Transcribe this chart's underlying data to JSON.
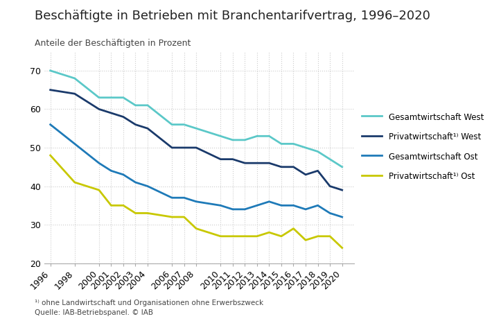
{
  "title": "Beschäftigte in Betrieben mit Branchentarifvertrag, 1996–2020",
  "subtitle": "Anteile der Beschäftigten in Prozent",
  "footnote1": "¹⁾ ohne Landwirtschaft und Organisationen ohne Erwerbszweck",
  "footnote2": "Quelle: IAB-Betriebspanel. © IAB",
  "years": [
    1996,
    1998,
    2000,
    2001,
    2002,
    2003,
    2004,
    2006,
    2007,
    2008,
    2010,
    2011,
    2012,
    2013,
    2014,
    2015,
    2016,
    2017,
    2018,
    2019,
    2020
  ],
  "gesamtwirtschaft_west": [
    70,
    68,
    63,
    63,
    63,
    61,
    61,
    56,
    56,
    55,
    53,
    52,
    52,
    53,
    53,
    51,
    51,
    50,
    49,
    47,
    45
  ],
  "privatwirtschaft_west": [
    65,
    64,
    60,
    59,
    58,
    56,
    55,
    50,
    50,
    50,
    47,
    47,
    46,
    46,
    46,
    45,
    45,
    43,
    44,
    40,
    39
  ],
  "gesamtwirtschaft_ost": [
    56,
    51,
    46,
    44,
    43,
    41,
    40,
    37,
    37,
    36,
    35,
    34,
    34,
    35,
    36,
    35,
    35,
    34,
    35,
    33,
    32
  ],
  "privatwirtschaft_ost": [
    48,
    41,
    39,
    35,
    35,
    33,
    33,
    32,
    32,
    29,
    27,
    27,
    27,
    27,
    28,
    27,
    29,
    26,
    27,
    27,
    24
  ],
  "color_gesamtwirtschaft_west": "#5BC8C8",
  "color_privatwirtschaft_west": "#1A3A6B",
  "color_gesamtwirtschaft_ost": "#1E7AB8",
  "color_privatwirtschaft_ost": "#C8C800",
  "ylim": [
    20,
    75
  ],
  "yticks": [
    20,
    30,
    40,
    50,
    60,
    70
  ],
  "legend_labels": [
    "Gesamtwirtschaft West",
    "Privatwirtschaft¹⁾ West",
    "Gesamtwirtschaft Ost",
    "Privatwirtschaft¹⁾ Ost"
  ],
  "background_color": "#FFFFFF",
  "grid_color": "#CCCCCC"
}
